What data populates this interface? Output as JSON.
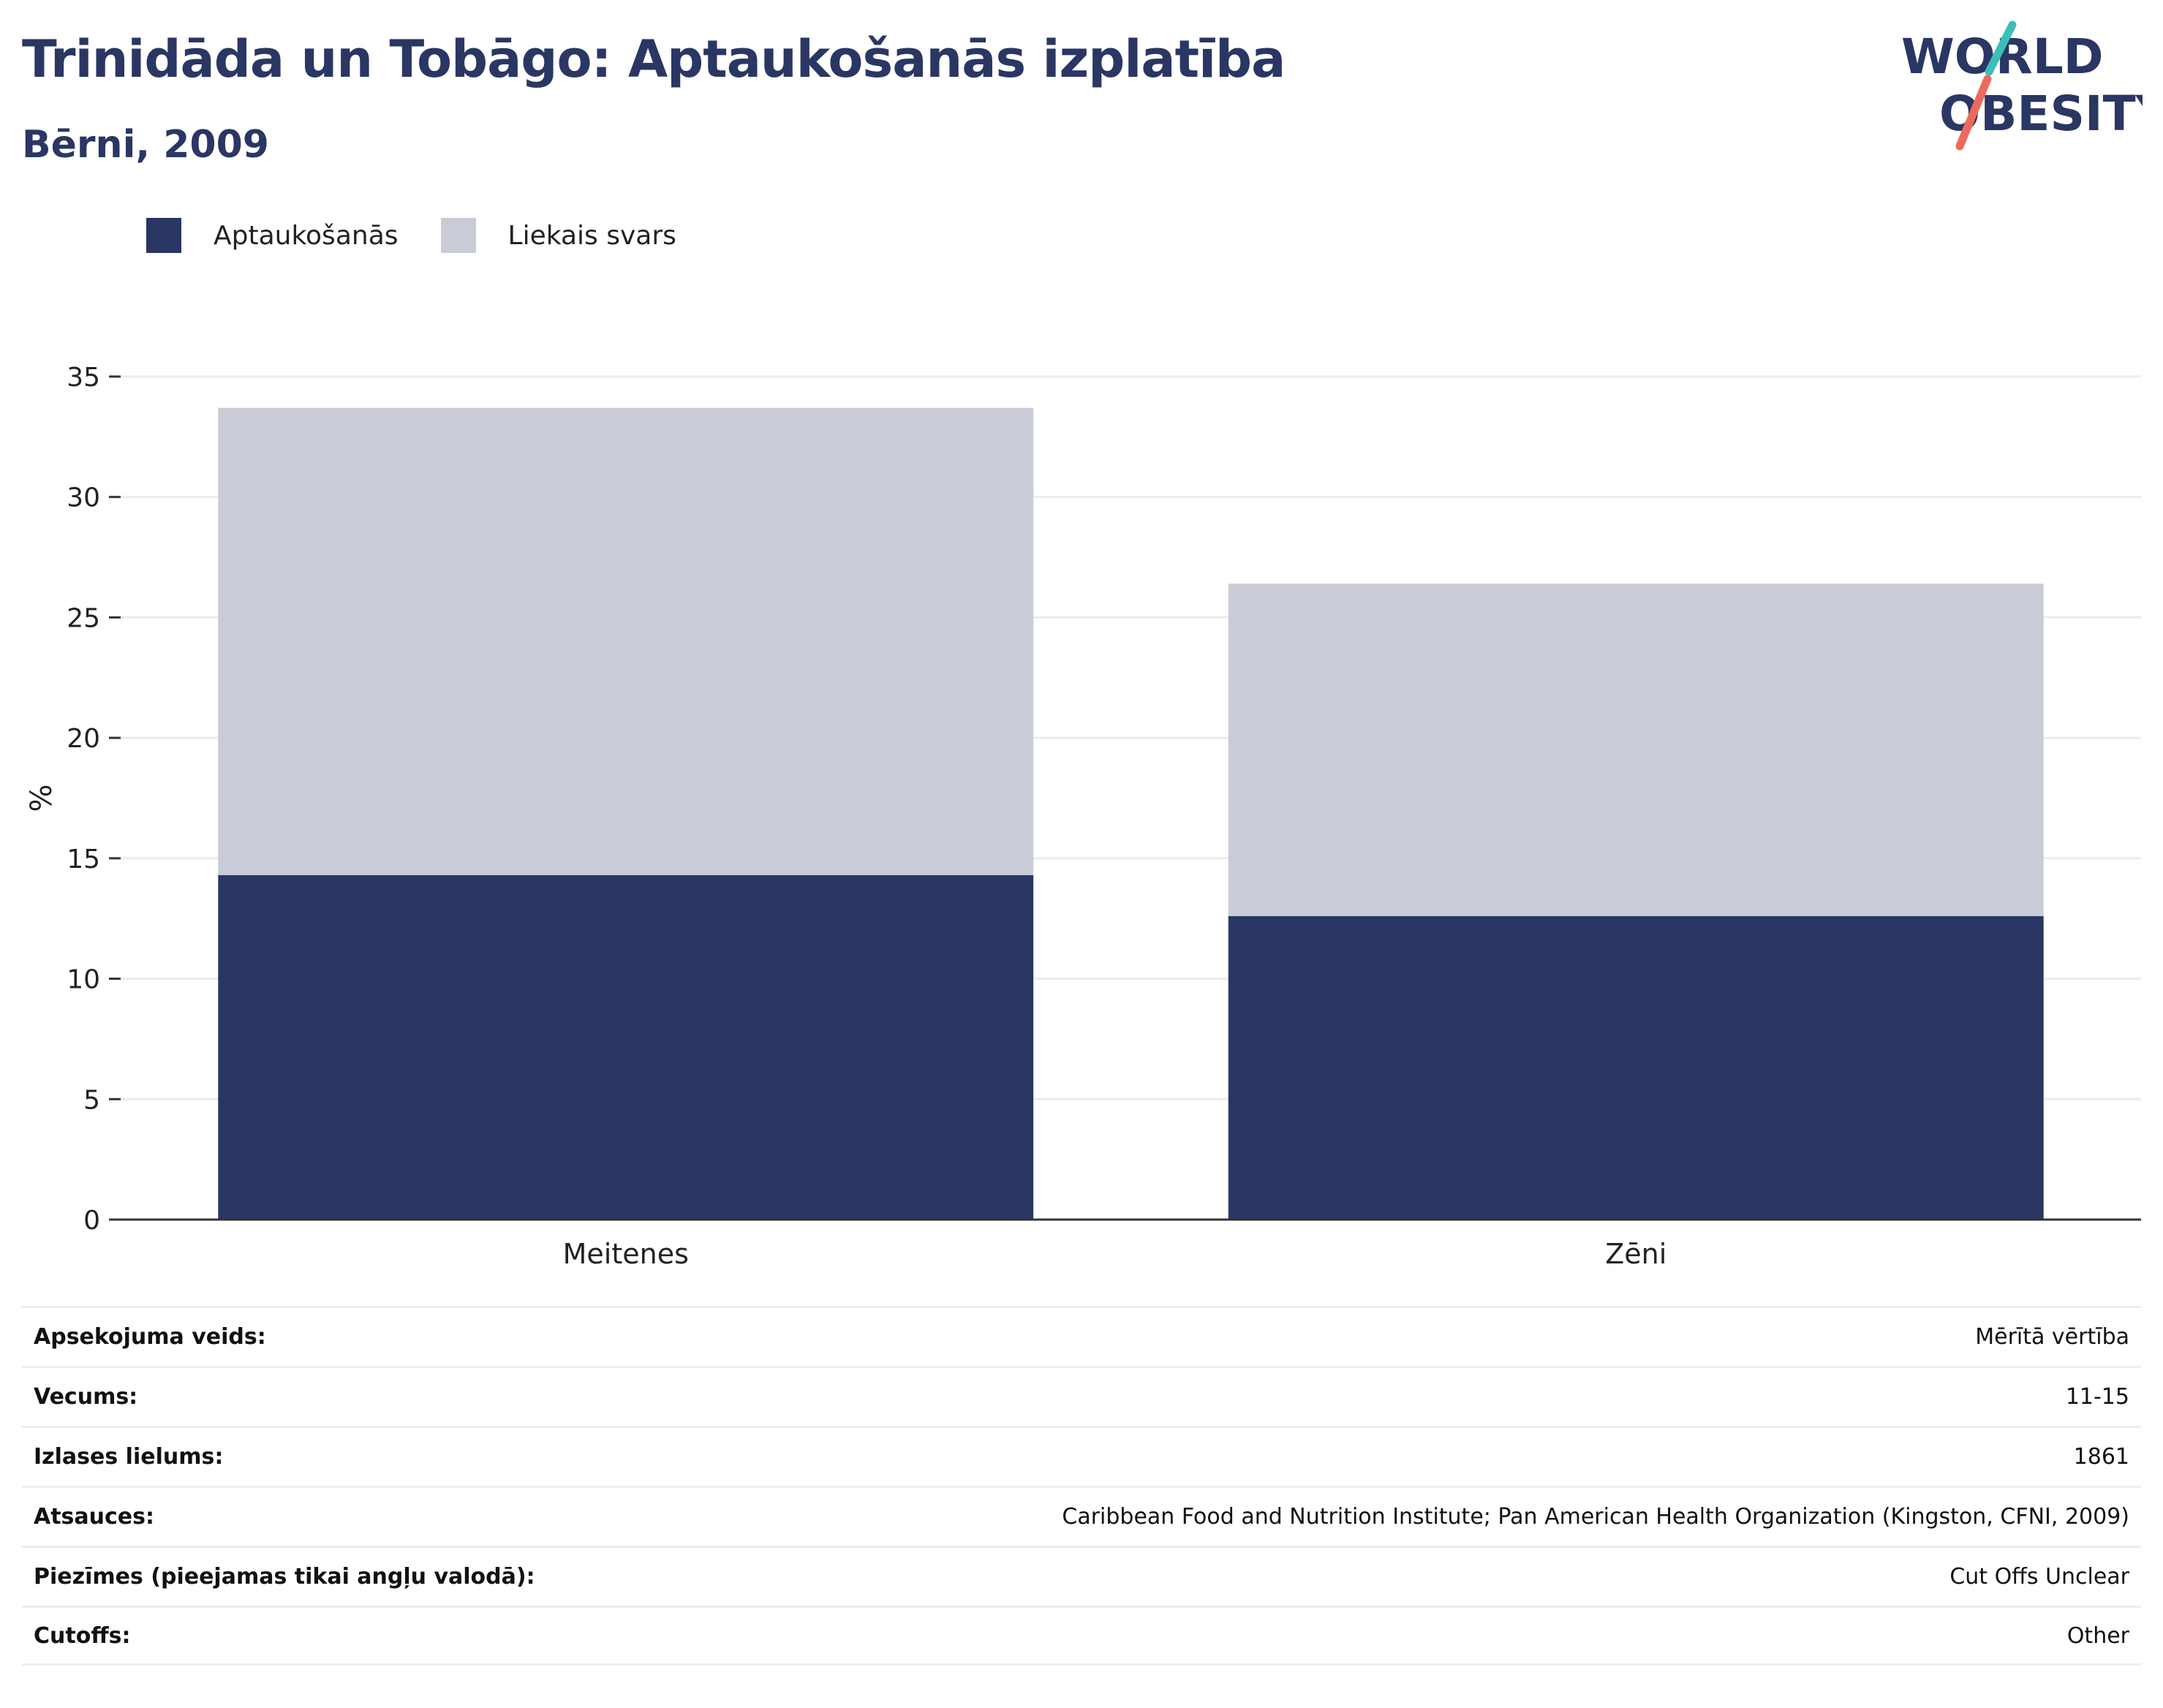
{
  "title": "Trinidāda un Tobāgo: Aptaukošanās izplatība",
  "subtitle": "Bērni, 2009",
  "logo": {
    "line1": "WORLD",
    "line2": "OBESITY"
  },
  "colors": {
    "obesity": "#2a3663",
    "overweight": "#c9cbd6",
    "text": "#2a3663",
    "grid": "#ebebf0",
    "logo_teal": "#3bbfb8",
    "logo_coral": "#ec6a5c"
  },
  "legend": [
    {
      "label": "Aptaukošanās",
      "color": "#2a3663"
    },
    {
      "label": "Liekais svars",
      "color": "#c9cbd6"
    }
  ],
  "chart_data": {
    "type": "bar",
    "stacked": true,
    "categories": [
      "Meitenes",
      "Zēni"
    ],
    "series": [
      {
        "name": "Aptaukošanās",
        "values": [
          14.3,
          12.6
        ]
      },
      {
        "name": "Liekais svars",
        "values": [
          19.4,
          13.8
        ]
      }
    ],
    "totals": [
      33.7,
      26.4
    ],
    "ylabel": "%",
    "ylim": [
      0,
      35
    ],
    "yticks": [
      0,
      5,
      10,
      15,
      20,
      25,
      30,
      35
    ],
    "grid": true,
    "legend_position": "top-left"
  },
  "info": [
    {
      "key": "Apsekojuma veids:",
      "value": "Mērītā vērtība"
    },
    {
      "key": "Vecums:",
      "value": "11-15"
    },
    {
      "key": "Izlases lielums:",
      "value": "1861"
    },
    {
      "key": "Atsauces:",
      "value": "Caribbean Food and Nutrition Institute; Pan American Health Organization (Kingston, CFNI, 2009)"
    },
    {
      "key": "Piezīmes (pieejamas tikai angļu valodā):",
      "value": "Cut Offs Unclear"
    },
    {
      "key": "Cutoffs:",
      "value": "Other"
    }
  ]
}
